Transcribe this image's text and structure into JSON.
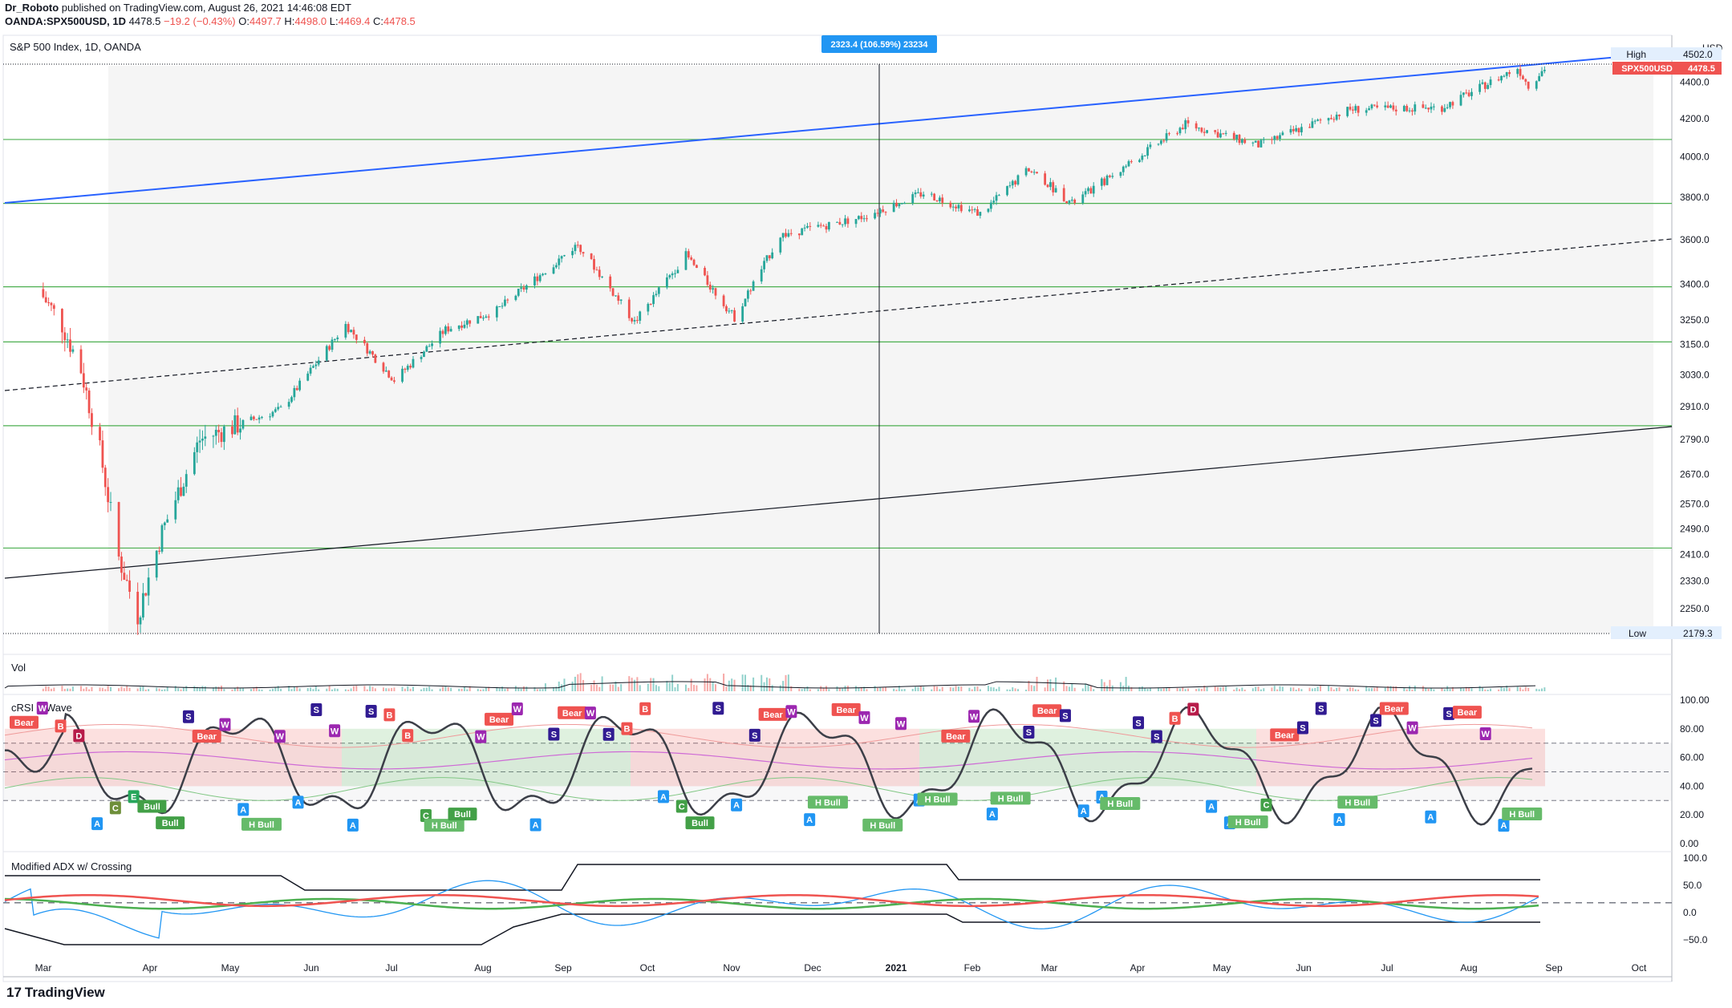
{
  "header": {
    "author": "Dr_Roboto",
    "published": "published on TradingView.com, August 26, 2021 14:46:08 EDT",
    "symbol": "OANDA:SPX500USD, 1D",
    "price": "4478.5",
    "change": "−19.2 (−0.43%)",
    "o_label": "O:",
    "o": "4497.7",
    "h_label": "H:",
    "h": "4498.0",
    "l_label": "L:",
    "l": "4469.4",
    "c_label": "C:",
    "c": "4478.5"
  },
  "main_pane": {
    "title": "S&P 500 Index, 1D, OANDA",
    "currency": "USD",
    "price_badge": "SPX500USD",
    "price_value": "4478.5",
    "high_label": "High",
    "high_value": "4502.0",
    "low_label": "Low",
    "low_value": "2179.3",
    "measure_label": "2323.4 (106.59%) 23234",
    "price_ticks": [
      "4400.0",
      "4200.0",
      "4000.0",
      "3800.0",
      "3600.0",
      "3400.0",
      "3250.0",
      "3150.0",
      "3030.0",
      "2910.0",
      "2790.0",
      "2670.0",
      "2570.0",
      "2490.0",
      "2410.0",
      "2330.0",
      "2250.0"
    ]
  },
  "vol_pane": {
    "title": "Vol"
  },
  "crsi_pane": {
    "title": "cRSI + Wave",
    "ticks": [
      "100.00",
      "80.00",
      "60.00",
      "40.00",
      "20.00",
      "0.00"
    ],
    "signals": [
      {
        "t": "Bear",
        "c": "#ef5350"
      },
      {
        "t": "W",
        "c": "#9c27b0"
      },
      {
        "t": "B",
        "c": "#ef5350"
      },
      {
        "t": "D",
        "c": "#b71c4a"
      },
      {
        "t": "A",
        "c": "#2196f3"
      },
      {
        "t": "C",
        "c": "#6e8f3a"
      },
      {
        "t": "E",
        "c": "#26a65b"
      },
      {
        "t": "Bull",
        "c": "#43a047"
      },
      {
        "t": "Bull",
        "c": "#43a047"
      },
      {
        "t": "S",
        "c": "#311b92"
      },
      {
        "t": "Bear",
        "c": "#ef5350"
      },
      {
        "t": "W",
        "c": "#9c27b0"
      },
      {
        "t": "A",
        "c": "#2196f3"
      },
      {
        "t": "H Bull",
        "c": "#66bb6a"
      },
      {
        "t": "W",
        "c": "#9c27b0"
      },
      {
        "t": "A",
        "c": "#2196f3"
      },
      {
        "t": "S",
        "c": "#311b92"
      },
      {
        "t": "W",
        "c": "#9c27b0"
      },
      {
        "t": "A",
        "c": "#2196f3"
      },
      {
        "t": "S",
        "c": "#311b92"
      },
      {
        "t": "B",
        "c": "#ef5350"
      },
      {
        "t": "B",
        "c": "#ef5350"
      },
      {
        "t": "C",
        "c": "#43a047"
      },
      {
        "t": "H Bull",
        "c": "#66bb6a"
      },
      {
        "t": "Bull",
        "c": "#43a047"
      },
      {
        "t": "W",
        "c": "#9c27b0"
      },
      {
        "t": "Bear",
        "c": "#ef5350"
      },
      {
        "t": "W",
        "c": "#9c27b0"
      },
      {
        "t": "A",
        "c": "#2196f3"
      },
      {
        "t": "S",
        "c": "#311b92"
      },
      {
        "t": "Bear",
        "c": "#ef5350"
      },
      {
        "t": "W",
        "c": "#9c27b0"
      },
      {
        "t": "S",
        "c": "#311b92"
      },
      {
        "t": "B",
        "c": "#ef5350"
      },
      {
        "t": "B",
        "c": "#ef5350"
      },
      {
        "t": "A",
        "c": "#2196f3"
      },
      {
        "t": "C",
        "c": "#43a047"
      },
      {
        "t": "Bull",
        "c": "#43a047"
      },
      {
        "t": "S",
        "c": "#311b92"
      },
      {
        "t": "A",
        "c": "#2196f3"
      },
      {
        "t": "S",
        "c": "#311b92"
      },
      {
        "t": "Bear",
        "c": "#ef5350"
      },
      {
        "t": "W",
        "c": "#9c27b0"
      },
      {
        "t": "A",
        "c": "#2196f3"
      },
      {
        "t": "H Bull",
        "c": "#66bb6a"
      },
      {
        "t": "Bear",
        "c": "#ef5350"
      },
      {
        "t": "W",
        "c": "#9c27b0"
      },
      {
        "t": "H Bull",
        "c": "#66bb6a"
      },
      {
        "t": "W",
        "c": "#9c27b0"
      },
      {
        "t": "A",
        "c": "#2196f3"
      },
      {
        "t": "H Bull",
        "c": "#66bb6a"
      },
      {
        "t": "Bear",
        "c": "#ef5350"
      },
      {
        "t": "W",
        "c": "#9c27b0"
      },
      {
        "t": "A",
        "c": "#2196f3"
      },
      {
        "t": "H Bull",
        "c": "#66bb6a"
      },
      {
        "t": "S",
        "c": "#311b92"
      },
      {
        "t": "Bear",
        "c": "#ef5350"
      },
      {
        "t": "S",
        "c": "#311b92"
      },
      {
        "t": "A",
        "c": "#2196f3"
      },
      {
        "t": "A",
        "c": "#2196f3"
      },
      {
        "t": "H Bull",
        "c": "#66bb6a"
      },
      {
        "t": "S",
        "c": "#311b92"
      },
      {
        "t": "S",
        "c": "#311b92"
      },
      {
        "t": "B",
        "c": "#ef5350"
      },
      {
        "t": "D",
        "c": "#b71c4a"
      },
      {
        "t": "A",
        "c": "#2196f3"
      },
      {
        "t": "A",
        "c": "#2196f3"
      },
      {
        "t": "H Bull",
        "c": "#66bb6a"
      },
      {
        "t": "C",
        "c": "#43a047"
      },
      {
        "t": "Bear",
        "c": "#ef5350"
      },
      {
        "t": "S",
        "c": "#311b92"
      },
      {
        "t": "S",
        "c": "#311b92"
      },
      {
        "t": "A",
        "c": "#2196f3"
      },
      {
        "t": "H Bull",
        "c": "#66bb6a"
      },
      {
        "t": "S",
        "c": "#311b92"
      },
      {
        "t": "Bear",
        "c": "#ef5350"
      },
      {
        "t": "W",
        "c": "#9c27b0"
      },
      {
        "t": "A",
        "c": "#2196f3"
      },
      {
        "t": "S",
        "c": "#311b92"
      },
      {
        "t": "Bear",
        "c": "#ef5350"
      },
      {
        "t": "W",
        "c": "#9c27b0"
      },
      {
        "t": "A",
        "c": "#2196f3"
      },
      {
        "t": "H Bull",
        "c": "#66bb6a"
      }
    ]
  },
  "adx_pane": {
    "title": "Modified ADX w/ Crossing",
    "ticks": [
      "100.0",
      "50.0",
      "0.0",
      "−50.0"
    ]
  },
  "time_axis": {
    "labels": [
      "Mar",
      "Apr",
      "May",
      "Jun",
      "Jul",
      "Aug",
      "Sep",
      "Oct",
      "Nov",
      "Dec",
      "2021",
      "Feb",
      "Mar",
      "Apr",
      "May",
      "Jun",
      "Jul",
      "Aug",
      "Sep",
      "Oct"
    ]
  },
  "brand": "TradingView",
  "colors": {
    "up": "#26a69a",
    "down": "#ef5350",
    "blue_line": "#2962ff",
    "green_level": "#4caf50",
    "crsi_line": "#2a2e39",
    "adx_blue": "#2196f3"
  },
  "chart_data": {
    "type": "candlestick",
    "title": "S&P 500 Index, 1D, OANDA",
    "ylabel": "USD",
    "y_scale": "log",
    "ylim": [
      2179.3,
      4502.0
    ],
    "x_range": [
      "2020-02",
      "2021-10"
    ],
    "series": [
      {
        "name": "SPX500USD",
        "approx_path": [
          {
            "x": "2020-02-15",
            "y": 3380
          },
          {
            "x": "2020-02-24",
            "y": 3230
          },
          {
            "x": "2020-03-02",
            "y": 3050
          },
          {
            "x": "2020-03-09",
            "y": 2750
          },
          {
            "x": "2020-03-16",
            "y": 2400
          },
          {
            "x": "2020-03-23",
            "y": 2230
          },
          {
            "x": "2020-04-01",
            "y": 2480
          },
          {
            "x": "2020-04-15",
            "y": 2790
          },
          {
            "x": "2020-05-01",
            "y": 2850
          },
          {
            "x": "2020-05-15",
            "y": 2900
          },
          {
            "x": "2020-06-08",
            "y": 3230
          },
          {
            "x": "2020-06-26",
            "y": 3010
          },
          {
            "x": "2020-07-15",
            "y": 3210
          },
          {
            "x": "2020-08-03",
            "y": 3290
          },
          {
            "x": "2020-09-02",
            "y": 3580
          },
          {
            "x": "2020-09-23",
            "y": 3240
          },
          {
            "x": "2020-10-12",
            "y": 3530
          },
          {
            "x": "2020-10-30",
            "y": 3260
          },
          {
            "x": "2020-11-16",
            "y": 3620
          },
          {
            "x": "2020-12-15",
            "y": 3700
          },
          {
            "x": "2021-01-08",
            "y": 3820
          },
          {
            "x": "2021-01-29",
            "y": 3720
          },
          {
            "x": "2021-02-16",
            "y": 3940
          },
          {
            "x": "2021-03-04",
            "y": 3770
          },
          {
            "x": "2021-04-15",
            "y": 4170
          },
          {
            "x": "2021-05-12",
            "y": 4060
          },
          {
            "x": "2021-06-15",
            "y": 4250
          },
          {
            "x": "2021-07-19",
            "y": 4260
          },
          {
            "x": "2021-08-16",
            "y": 4480
          },
          {
            "x": "2021-08-20",
            "y": 4380
          },
          {
            "x": "2021-08-26",
            "y": 4478.5
          }
        ]
      }
    ],
    "horizontal_levels": [
      4090,
      3770,
      3390,
      3160,
      2840,
      2430
    ],
    "panes": [
      "Vol",
      "cRSI + Wave",
      "Modified ADX w/ Crossing"
    ],
    "crsi_levels": [
      70,
      50,
      30
    ],
    "adx_levels": [
      20
    ]
  }
}
